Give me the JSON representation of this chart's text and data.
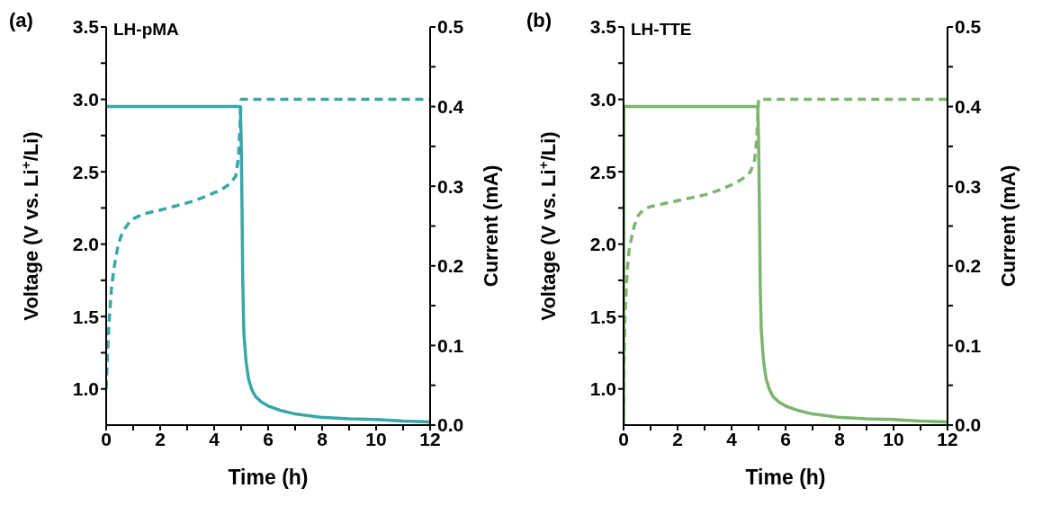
{
  "chart_data": [
    {
      "type": "line",
      "title": "(a)",
      "annotations": [
        "LH-pMA"
      ],
      "xlabel": "Time (h)",
      "ylabel": "Voltage (V vs. Li$^{+}$/Li)",
      "y2label": "Current (mA)",
      "xlim": [
        0,
        12
      ],
      "xticks": [
        0,
        {
          "value": 1,
          "label": null
        },
        2,
        {
          "value": 3,
          "label": null
        },
        4,
        {
          "value": 5,
          "label": null
        },
        6,
        {
          "value": 7,
          "label": null
        },
        8,
        {
          "value": 9,
          "label": null
        },
        10,
        {
          "value": 11,
          "label": null
        },
        12
      ],
      "ylim": [
        0.75,
        3.5
      ],
      "yticks": [
        {
          "value": 1,
          "label": "1.0"
        },
        {
          "value": 1.25,
          "label": null
        },
        {
          "value": 1.5,
          "label": "1.5"
        },
        {
          "value": 1.75,
          "label": null
        },
        {
          "value": 2,
          "label": "2.0"
        },
        {
          "value": 2.25,
          "label": null
        },
        {
          "value": 2.5,
          "label": "2.5"
        },
        {
          "value": 2.75,
          "label": null
        },
        {
          "value": 3,
          "label": "3.0"
        },
        {
          "value": 3.25,
          "label": null
        },
        {
          "value": 3.5,
          "label": "3.5"
        }
      ],
      "y2lim": [
        0,
        0.5
      ],
      "y2ticks": [
        {
          "value": 0,
          "label": "0.0"
        },
        {
          "value": 0.05,
          "label": null
        },
        0.1,
        {
          "value": 0.15,
          "label": null
        },
        0.2,
        {
          "value": 0.25,
          "label": null
        },
        0.3,
        {
          "value": 0.35,
          "label": null
        },
        0.4,
        {
          "value": 0.45,
          "label": null
        },
        0.5
      ],
      "series": [
        {
          "axis": "y",
          "line_style": "dashed",
          "color": "#3aa6a6",
          "x": [
            0,
            0.04,
            0.08,
            0.14,
            0.2,
            0.28,
            0.35,
            0.45,
            0.6,
            0.7,
            0.85,
            1.05,
            1.4,
            1.9,
            2.5,
            3.1,
            3.7,
            4.3,
            4.6,
            4.8,
            4.9,
            4.95,
            5,
            6,
            8,
            10,
            12
          ],
          "values": [
            1.0,
            1.2,
            1.38,
            1.55,
            1.7,
            1.82,
            1.9,
            2.0,
            2.08,
            2.11,
            2.15,
            2.18,
            2.21,
            2.23,
            2.26,
            2.29,
            2.33,
            2.38,
            2.42,
            2.47,
            2.6,
            2.8,
            3.0,
            3.0,
            3.0,
            3.0,
            3.0
          ]
        },
        {
          "axis": "y2",
          "line_style": "solid",
          "color": "#3aa6a6",
          "x": [
            0,
            2,
            4,
            4.97,
            5.0,
            5.03,
            5.06,
            5.1,
            5.18,
            5.28,
            5.4,
            5.53,
            5.75,
            6.0,
            6.5,
            7,
            7.94,
            9,
            10,
            11,
            12
          ],
          "values": [
            0.4,
            0.4,
            0.4,
            0.4,
            0.36,
            0.28,
            0.18,
            0.116,
            0.08,
            0.057,
            0.044,
            0.036,
            0.029,
            0.024,
            0.018,
            0.014,
            0.01,
            0.008,
            0.007,
            0.005,
            0.004
          ]
        }
      ]
    },
    {
      "type": "line",
      "title": "(b)",
      "annotations": [
        "LH-TTE"
      ],
      "xlabel": "Time (h)",
      "ylabel": "Voltage (V vs. Li$^{+}$/Li)",
      "y2label": "Current (mA)",
      "xlim": [
        0,
        12
      ],
      "xticks": [
        0,
        {
          "value": 1,
          "label": null
        },
        2,
        {
          "value": 3,
          "label": null
        },
        4,
        {
          "value": 5,
          "label": null
        },
        6,
        {
          "value": 7,
          "label": null
        },
        8,
        {
          "value": 9,
          "label": null
        },
        10,
        {
          "value": 11,
          "label": null
        },
        12
      ],
      "ylim": [
        0.75,
        3.5
      ],
      "yticks": [
        {
          "value": 1,
          "label": "1.0"
        },
        {
          "value": 1.25,
          "label": null
        },
        {
          "value": 1.5,
          "label": "1.5"
        },
        {
          "value": 1.75,
          "label": null
        },
        {
          "value": 2,
          "label": "2.0"
        },
        {
          "value": 2.25,
          "label": null
        },
        {
          "value": 2.5,
          "label": "2.5"
        },
        {
          "value": 2.75,
          "label": null
        },
        {
          "value": 3,
          "label": "3.0"
        },
        {
          "value": 3.25,
          "label": null
        },
        {
          "value": 3.5,
          "label": "3.5"
        }
      ],
      "y2lim": [
        0,
        0.5
      ],
      "y2ticks": [
        {
          "value": 0,
          "label": "0.0"
        },
        {
          "value": 0.05,
          "label": null
        },
        0.1,
        {
          "value": 0.15,
          "label": null
        },
        0.2,
        {
          "value": 0.25,
          "label": null
        },
        0.3,
        {
          "value": 0.35,
          "label": null
        },
        0.4,
        {
          "value": 0.45,
          "label": null
        },
        0.5
      ],
      "series": [
        {
          "axis": "y",
          "line_style": "dashed",
          "color": "#7db56e",
          "x": [
            0,
            0.02,
            0.05,
            0.1,
            0.15,
            0.2,
            0.3,
            0.4,
            0.55,
            0.75,
            1,
            1.5,
            2,
            2.5,
            3,
            3.5,
            4,
            4.4,
            4.7,
            4.85,
            4.92,
            4.97,
            5,
            6,
            8,
            10,
            12
          ],
          "values": [
            0.8,
            1.2,
            1.5,
            1.7,
            1.85,
            1.95,
            2.05,
            2.13,
            2.2,
            2.24,
            2.26,
            2.28,
            2.3,
            2.32,
            2.34,
            2.37,
            2.41,
            2.45,
            2.5,
            2.58,
            2.7,
            2.85,
            3.0,
            3.0,
            3.0,
            3.0,
            3.0
          ]
        },
        {
          "axis": "y2",
          "line_style": "solid",
          "color": "#7db56e",
          "x": [
            0,
            0.01,
            2,
            4,
            4.97,
            5.0,
            5.03,
            5.06,
            5.1,
            5.18,
            5.28,
            5.4,
            5.53,
            5.75,
            6.0,
            6.5,
            7,
            7.94,
            9,
            10,
            11,
            12
          ],
          "values": [
            0,
            0.4,
            0.4,
            0.4,
            0.4,
            0.36,
            0.28,
            0.18,
            0.12,
            0.082,
            0.058,
            0.045,
            0.036,
            0.029,
            0.024,
            0.018,
            0.014,
            0.01,
            0.008,
            0.007,
            0.005,
            0.004
          ]
        }
      ]
    }
  ]
}
